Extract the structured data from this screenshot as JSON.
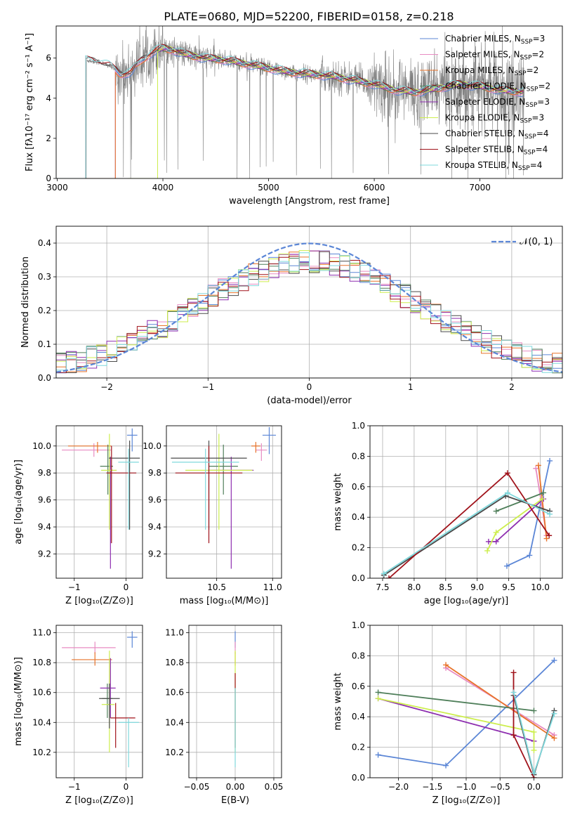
{
  "colors": {
    "chabrier_miles": "#5b86d6",
    "salpeter_miles": "#e88cc2",
    "kroupa_miles": "#e8732a",
    "chabrier_elodie": "#4f7f5a",
    "salpeter_elodie": "#8e2fb0",
    "kroupa_elodie": "#cdee4e",
    "chabrier_stelib": "#4a4a4a",
    "salpeter_stelib": "#a0121a",
    "kroupa_stelib": "#7fd8dc",
    "data_spectrum": "#7f7f7f",
    "normal_curve": "#5b86d6",
    "grid": "#b0b0b0"
  },
  "chart_data": [
    {
      "id": "spectrum",
      "type": "line",
      "title": "PLATE=0680, MJD=52200, FIBERID=0158, z=0.218",
      "xlabel": "wavelength [Angstrom, rest frame]",
      "ylabel": "Flux [fλ10⁻¹⁷ erg cm⁻² s⁻¹ A⁻¹]",
      "xlim": [
        2990,
        7780
      ],
      "ylim": [
        0,
        7.6
      ],
      "xticks": [
        3000,
        4000,
        5000,
        6000,
        7000
      ],
      "yticks": [
        0,
        2,
        4,
        6
      ],
      "grid": false,
      "legend": [
        {
          "color": "chabrier_miles",
          "label": "Chabrier MILES, N",
          "sub": "SSP",
          "tail": "=3"
        },
        {
          "color": "salpeter_miles",
          "label": "Salpeter MILES, N",
          "sub": "SSP",
          "tail": "=2"
        },
        {
          "color": "kroupa_miles",
          "label": "Kroupa MILES, N",
          "sub": "SSP",
          "tail": "=2"
        },
        {
          "color": "chabrier_elodie",
          "label": "Chabrier ELODIE, N",
          "sub": "SSP",
          "tail": "=2"
        },
        {
          "color": "salpeter_elodie",
          "label": "Salpeter ELODIE, N",
          "sub": "SSP",
          "tail": "=3"
        },
        {
          "color": "kroupa_elodie",
          "label": "Kroupa ELODIE, N",
          "sub": "SSP",
          "tail": "=3"
        },
        {
          "color": "chabrier_stelib",
          "label": "Chabrier STELIB, N",
          "sub": "SSP",
          "tail": "=4"
        },
        {
          "color": "salpeter_stelib",
          "label": "Salpeter STELIB, N",
          "sub": "SSP",
          "tail": "=4"
        },
        {
          "color": "kroupa_stelib",
          "label": "Kroupa STELIB, N",
          "sub": "SSP",
          "tail": "=4"
        }
      ],
      "data_range": [
        3270,
        7420
      ],
      "model_continuum": [
        [
          3270,
          5.9
        ],
        [
          3400,
          5.8
        ],
        [
          3500,
          5.6
        ],
        [
          3600,
          5.2
        ],
        [
          3700,
          5.3
        ],
        [
          3800,
          5.9
        ],
        [
          3900,
          6.3
        ],
        [
          4000,
          6.5
        ],
        [
          4100,
          6.4
        ],
        [
          4200,
          6.2
        ],
        [
          4400,
          6.0
        ],
        [
          4600,
          5.9
        ],
        [
          4800,
          5.7
        ],
        [
          5000,
          5.5
        ],
        [
          5200,
          5.3
        ],
        [
          5400,
          5.2
        ],
        [
          5600,
          5.1
        ],
        [
          5800,
          4.9
        ],
        [
          6000,
          4.7
        ],
        [
          6200,
          4.4
        ],
        [
          6400,
          4.3
        ],
        [
          6600,
          4.5
        ],
        [
          6800,
          4.7
        ],
        [
          7000,
          4.6
        ],
        [
          7200,
          4.4
        ],
        [
          7420,
          4.3
        ]
      ],
      "model_starts": {
        "salpeter_miles": 3550,
        "kroupa_miles": 3550,
        "chabrier_miles": 3550,
        "kroupa_elodie": 3950,
        "salpeter_elodie": 3950,
        "chabrier_elodie": 3950,
        "chabrier_stelib": 3270,
        "salpeter_stelib": 3270,
        "kroupa_stelib": 3270
      }
    },
    {
      "id": "residuals",
      "type": "line",
      "xlabel": "(data-model)/error",
      "ylabel": "Normed distribution",
      "xlim": [
        -2.5,
        2.5
      ],
      "ylim": [
        0,
        0.45
      ],
      "xticks": [
        -2,
        -1,
        0,
        1,
        2
      ],
      "yticks": [
        0.0,
        0.1,
        0.2,
        0.3,
        0.4
      ],
      "grid": true,
      "legend_label": "𝒩(0, 1)",
      "bin_width": 0.1,
      "histogram_mean_profile": "gaussian sigma 1.1 peak 0.335"
    },
    {
      "id": "age_vs_Z",
      "type": "scatter",
      "xlabel": "Z [log₁₀(Z/Z⊙)]",
      "ylabel": "age  [log₁₀(age/yr)]",
      "xlim": [
        -1.35,
        0.32
      ],
      "ylim": [
        9.02,
        10.15
      ],
      "xticks": [
        -1,
        0
      ],
      "yticks": [
        9.2,
        9.4,
        9.6,
        9.8,
        10.0
      ],
      "grid": true,
      "points": [
        {
          "color": "chabrier_miles",
          "x": 0.12,
          "y": 10.08,
          "xerr": [
            0.1,
            0.1
          ],
          "yerr": [
            0.12,
            0.05
          ]
        },
        {
          "color": "salpeter_miles",
          "x": -0.62,
          "y": 9.97,
          "xerr": [
            0.62,
            0.33
          ],
          "yerr": [
            0.05,
            0.05
          ]
        },
        {
          "color": "kroupa_miles",
          "x": -0.55,
          "y": 10.0,
          "xerr": [
            0.57,
            0.27
          ],
          "yerr": [
            0.05,
            0.03
          ]
        },
        {
          "color": "chabrier_elodie",
          "x": -0.35,
          "y": 9.85,
          "xerr": [
            0.15,
            0.1
          ],
          "yerr": [
            0.21,
            0.16
          ]
        },
        {
          "color": "salpeter_elodie",
          "x": -0.3,
          "y": 9.82,
          "xerr": [
            0.05,
            0.05
          ],
          "yerr": [
            0.73,
            0.1
          ]
        },
        {
          "color": "kroupa_elodie",
          "x": -0.32,
          "y": 9.82,
          "xerr": [
            0.16,
            0.14
          ],
          "yerr": [
            0.44,
            0.27
          ]
        },
        {
          "color": "chabrier_stelib",
          "x": 0.07,
          "y": 9.91,
          "xerr": [
            0.4,
            0.2
          ],
          "yerr": [
            0.53,
            0.13
          ]
        },
        {
          "color": "salpeter_stelib",
          "x": -0.28,
          "y": 9.8,
          "xerr": [
            0.1,
            0.48
          ],
          "yerr": [
            0.52,
            0.2
          ]
        },
        {
          "color": "kroupa_stelib",
          "x": 0.05,
          "y": 9.88,
          "xerr": [
            0.2,
            0.2
          ],
          "yerr": [
            0.5,
            0.1
          ]
        }
      ]
    },
    {
      "id": "age_vs_mass",
      "type": "scatter",
      "xlabel": "mass [log₁₀(M/M⊙)]",
      "ylabel": "",
      "xlim": [
        10.05,
        11.08
      ],
      "ylim": [
        9.02,
        10.15
      ],
      "xticks": [
        10.5,
        11.0
      ],
      "yticks": [
        9.2,
        9.4,
        9.6,
        9.8,
        10.0
      ],
      "grid": true,
      "points": [
        {
          "color": "chabrier_miles",
          "x": 10.97,
          "y": 10.08,
          "xerr": [
            0.06,
            0.06
          ],
          "yerr": [
            0.14,
            0.06
          ]
        },
        {
          "color": "salpeter_miles",
          "x": 10.9,
          "y": 9.97,
          "xerr": [
            0.05,
            0.05
          ],
          "yerr": [
            0.08,
            0.05
          ]
        },
        {
          "color": "kroupa_miles",
          "x": 10.85,
          "y": 10.0,
          "xerr": [
            0.04,
            0.04
          ],
          "yerr": [
            0.05,
            0.03
          ]
        },
        {
          "color": "chabrier_elodie",
          "x": 10.56,
          "y": 9.85,
          "xerr": [
            0.13,
            0.13
          ],
          "yerr": [
            0.21,
            0.16
          ]
        },
        {
          "color": "salpeter_elodie",
          "x": 10.63,
          "y": 9.82,
          "xerr": [
            0.2,
            0.2
          ],
          "yerr": [
            0.73,
            0.1
          ]
        },
        {
          "color": "kroupa_elodie",
          "x": 10.52,
          "y": 9.82,
          "xerr": [
            0.3,
            0.3
          ],
          "yerr": [
            0.44,
            0.27
          ]
        },
        {
          "color": "chabrier_stelib",
          "x": 10.43,
          "y": 9.91,
          "xerr": [
            0.34,
            0.34
          ],
          "yerr": [
            0.53,
            0.13
          ]
        },
        {
          "color": "salpeter_stelib",
          "x": 10.43,
          "y": 9.8,
          "xerr": [
            0.3,
            0.3
          ],
          "yerr": [
            0.52,
            0.2
          ]
        },
        {
          "color": "kroupa_stelib",
          "x": 10.4,
          "y": 9.88,
          "xerr": [
            0.3,
            0.3
          ],
          "yerr": [
            0.5,
            0.1
          ]
        }
      ]
    },
    {
      "id": "weight_vs_age",
      "type": "line",
      "xlabel": "age  [log₁₀(age/yr)]",
      "ylabel": "mass weight",
      "xlim": [
        7.3,
        10.35
      ],
      "ylim": [
        0,
        1.0
      ],
      "xticks": [
        7.5,
        8.0,
        8.5,
        9.0,
        9.5,
        10.0
      ],
      "yticks": [
        0.0,
        0.2,
        0.4,
        0.6,
        0.8,
        1.0
      ],
      "grid": true,
      "series": [
        {
          "color": "chabrier_miles",
          "points": [
            [
              9.47,
              0.08
            ],
            [
              9.83,
              0.15
            ],
            [
              10.15,
              0.77
            ]
          ]
        },
        {
          "color": "salpeter_miles",
          "points": [
            [
              9.93,
              0.72
            ],
            [
              10.1,
              0.28
            ]
          ]
        },
        {
          "color": "kroupa_miles",
          "points": [
            [
              9.97,
              0.74
            ],
            [
              10.1,
              0.26
            ]
          ]
        },
        {
          "color": "chabrier_elodie",
          "points": [
            [
              9.3,
              0.44
            ],
            [
              10.05,
              0.56
            ]
          ]
        },
        {
          "color": "salpeter_elodie",
          "points": [
            [
              9.18,
              0.24
            ],
            [
              9.3,
              0.24
            ],
            [
              10.05,
              0.52
            ]
          ]
        },
        {
          "color": "kroupa_elodie",
          "points": [
            [
              9.16,
              0.18
            ],
            [
              9.3,
              0.3
            ],
            [
              10.03,
              0.52
            ]
          ]
        },
        {
          "color": "chabrier_stelib",
          "points": [
            [
              7.52,
              0.02
            ],
            [
              9.45,
              0.54
            ],
            [
              10.15,
              0.44
            ]
          ]
        },
        {
          "color": "salpeter_stelib",
          "points": [
            [
              7.6,
              0.0
            ],
            [
              9.48,
              0.69
            ],
            [
              10.14,
              0.28
            ]
          ]
        },
        {
          "color": "kroupa_stelib",
          "points": [
            [
              7.52,
              0.03
            ],
            [
              9.48,
              0.56
            ],
            [
              10.15,
              0.42
            ]
          ]
        }
      ]
    },
    {
      "id": "mass_vs_Z",
      "type": "scatter",
      "xlabel": "Z [log₁₀(Z/Z⊙)]",
      "ylabel": "mass [log₁₀(M/M⊙)]",
      "xlim": [
        -1.35,
        0.32
      ],
      "ylim": [
        10.03,
        11.05
      ],
      "xticks": [
        -1,
        0
      ],
      "yticks": [
        10.2,
        10.4,
        10.6,
        10.8,
        11.0
      ],
      "grid": true,
      "points": [
        {
          "color": "chabrier_miles",
          "x": 0.12,
          "y": 10.97,
          "xerr": [
            0.1,
            0.1
          ],
          "yerr": [
            0.07,
            0.04
          ]
        },
        {
          "color": "salpeter_miles",
          "x": -0.6,
          "y": 10.9,
          "xerr": [
            0.64,
            0.4
          ],
          "yerr": [
            0.04,
            0.04
          ]
        },
        {
          "color": "kroupa_miles",
          "x": -0.6,
          "y": 10.82,
          "xerr": [
            0.45,
            0.33
          ],
          "yerr": [
            0.04,
            0.05
          ]
        },
        {
          "color": "chabrier_elodie",
          "x": -0.36,
          "y": 10.56,
          "xerr": [
            0.1,
            0.1
          ],
          "yerr": [
            0.13,
            0.1
          ]
        },
        {
          "color": "salpeter_elodie",
          "x": -0.3,
          "y": 10.63,
          "xerr": [
            0.2,
            0.1
          ],
          "yerr": [
            0.2,
            0.2
          ]
        },
        {
          "color": "kroupa_elodie",
          "x": -0.32,
          "y": 10.52,
          "xerr": [
            0.15,
            0.1
          ],
          "yerr": [
            0.32,
            0.36
          ]
        },
        {
          "color": "chabrier_stelib",
          "x": -0.32,
          "y": 10.56,
          "xerr": [
            0.2,
            0.2
          ],
          "yerr": [
            0.2,
            0.1
          ]
        },
        {
          "color": "salpeter_stelib",
          "x": -0.2,
          "y": 10.43,
          "xerr": [
            0.1,
            0.38
          ],
          "yerr": [
            0.2,
            0.1
          ]
        },
        {
          "color": "kroupa_stelib",
          "x": 0.05,
          "y": 10.4,
          "xerr": [
            0.2,
            0.2
          ],
          "yerr": [
            0.3,
            0.03
          ]
        }
      ]
    },
    {
      "id": "mass_vs_ebv",
      "type": "scatter",
      "xlabel": "E(B-V)",
      "ylabel": "",
      "xlim": [
        -0.06,
        0.06
      ],
      "ylim": [
        10.03,
        11.05
      ],
      "xticks": [
        -0.05,
        0.0,
        0.05
      ],
      "xticklabels": [
        "−0.05",
        "0.00",
        "0.05"
      ],
      "yticks": [
        10.2,
        10.4,
        10.6,
        10.8,
        11.0
      ],
      "grid": true,
      "points": [
        {
          "color": "chabrier_miles",
          "x": 0,
          "y": 10.97,
          "xerr": [
            0,
            0
          ],
          "yerr": [
            0.07,
            0.04
          ]
        },
        {
          "color": "salpeter_miles",
          "x": 0,
          "y": 10.9,
          "xerr": [
            0,
            0
          ],
          "yerr": [
            0.04,
            0.04
          ]
        },
        {
          "color": "kroupa_miles",
          "x": 0,
          "y": 10.82,
          "xerr": [
            0,
            0
          ],
          "yerr": [
            0.04,
            0.05
          ]
        },
        {
          "color": "kroupa_elodie",
          "x": 0,
          "y": 10.52,
          "xerr": [
            0,
            0
          ],
          "yerr": [
            0.32,
            0.36
          ]
        },
        {
          "color": "salpeter_stelib",
          "x": 0,
          "y": 10.43,
          "xerr": [
            0,
            0
          ],
          "yerr": [
            0.2,
            0.3
          ]
        },
        {
          "color": "kroupa_stelib",
          "x": 0,
          "y": 10.4,
          "xerr": [
            0,
            0
          ],
          "yerr": [
            0.3,
            0.23
          ]
        }
      ]
    },
    {
      "id": "weight_vs_Z",
      "type": "line",
      "xlabel": "Z [log₁₀(Z/Z⊙)]",
      "ylabel": "mass weight",
      "xlim": [
        -2.42,
        0.42
      ],
      "ylim": [
        0,
        1.0
      ],
      "xticks": [
        -2.0,
        -1.5,
        -1.0,
        -0.5,
        0.0
      ],
      "yticks": [
        0.0,
        0.2,
        0.4,
        0.6,
        0.8,
        1.0
      ],
      "grid": true,
      "series": [
        {
          "color": "chabrier_miles",
          "points": [
            [
              -2.3,
              0.15
            ],
            [
              -1.3,
              0.08
            ],
            [
              0.3,
              0.77
            ]
          ]
        },
        {
          "color": "salpeter_miles",
          "points": [
            [
              -1.3,
              0.72
            ],
            [
              0.3,
              0.28
            ]
          ]
        },
        {
          "color": "kroupa_miles",
          "points": [
            [
              -1.3,
              0.74
            ],
            [
              0.3,
              0.26
            ]
          ]
        },
        {
          "color": "chabrier_elodie",
          "points": [
            [
              -2.3,
              0.56
            ],
            [
              0.0,
              0.44
            ]
          ]
        },
        {
          "color": "salpeter_elodie",
          "points": [
            [
              -2.3,
              0.52
            ],
            [
              -0.3,
              0.28
            ],
            [
              0.0,
              0.24
            ]
          ]
        },
        {
          "color": "kroupa_elodie",
          "points": [
            [
              -2.3,
              0.52
            ],
            [
              0.0,
              0.3
            ],
            [
              0.0,
              0.18
            ]
          ]
        },
        {
          "color": "chabrier_stelib",
          "points": [
            [
              -0.3,
              0.54
            ],
            [
              0.0,
              0.02
            ],
            [
              0.3,
              0.44
            ]
          ]
        },
        {
          "color": "salpeter_stelib",
          "points": [
            [
              -0.3,
              0.69
            ],
            [
              -0.3,
              0.28
            ],
            [
              0.0,
              0.0
            ]
          ]
        },
        {
          "color": "kroupa_stelib",
          "points": [
            [
              -0.3,
              0.56
            ],
            [
              0.0,
              0.03
            ],
            [
              0.3,
              0.42
            ]
          ]
        }
      ]
    }
  ]
}
